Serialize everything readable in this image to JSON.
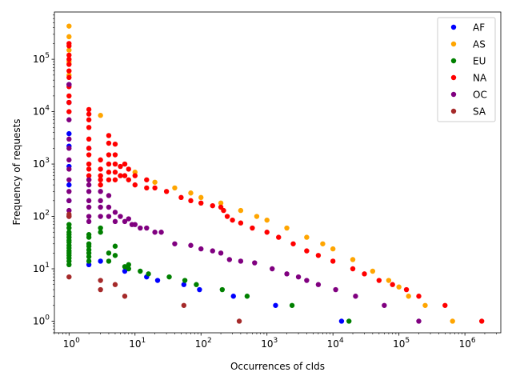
{
  "chart_data": {
    "type": "scatter",
    "xlabel": "Occurrences of cIds",
    "ylabel": "Frequency of requests",
    "xscale": "log",
    "yscale": "log",
    "xlim": [
      0.6,
      3500000
    ],
    "ylim": [
      0.6,
      800000
    ],
    "grid": false,
    "legend_position": "top-right",
    "x_ticks": [
      {
        "value": 1,
        "base": "10",
        "exp": "0"
      },
      {
        "value": 10,
        "base": "10",
        "exp": "1"
      },
      {
        "value": 100,
        "base": "10",
        "exp": "2"
      },
      {
        "value": 1000,
        "base": "10",
        "exp": "3"
      },
      {
        "value": 10000,
        "base": "10",
        "exp": "4"
      },
      {
        "value": 100000,
        "base": "10",
        "exp": "5"
      },
      {
        "value": 1000000,
        "base": "10",
        "exp": "6"
      }
    ],
    "y_ticks": [
      {
        "value": 1,
        "base": "10",
        "exp": "0"
      },
      {
        "value": 10,
        "base": "10",
        "exp": "1"
      },
      {
        "value": 100,
        "base": "10",
        "exp": "2"
      },
      {
        "value": 1000,
        "base": "10",
        "exp": "3"
      },
      {
        "value": 10000,
        "base": "10",
        "exp": "4"
      },
      {
        "value": 100000,
        "base": "10",
        "exp": "5"
      }
    ],
    "series": [
      {
        "name": "AF",
        "color": "#0000ff",
        "points": [
          [
            1,
            3800
          ],
          [
            1,
            33000
          ],
          [
            1,
            15000
          ],
          [
            1,
            2200
          ],
          [
            1,
            900
          ],
          [
            1,
            400
          ],
          [
            1,
            200
          ],
          [
            2,
            12
          ],
          [
            2,
            2000
          ],
          [
            3,
            14
          ],
          [
            7,
            9
          ],
          [
            15,
            7
          ],
          [
            22,
            6
          ],
          [
            55,
            5
          ],
          [
            95,
            4
          ],
          [
            310,
            3
          ],
          [
            1350,
            2
          ],
          [
            13500,
            1
          ]
        ]
      },
      {
        "name": "AS",
        "color": "#ffa500",
        "points": [
          [
            1,
            430000
          ],
          [
            1,
            270000
          ],
          [
            1,
            150000
          ],
          [
            1,
            90000
          ],
          [
            1,
            50000
          ],
          [
            3,
            8500
          ],
          [
            10,
            700
          ],
          [
            20,
            450
          ],
          [
            40,
            350
          ],
          [
            70,
            280
          ],
          [
            100,
            230
          ],
          [
            200,
            180
          ],
          [
            400,
            130
          ],
          [
            700,
            100
          ],
          [
            1000,
            85
          ],
          [
            2000,
            60
          ],
          [
            4000,
            40
          ],
          [
            7000,
            30
          ],
          [
            10000,
            24
          ],
          [
            20000,
            15
          ],
          [
            40000,
            9
          ],
          [
            70000,
            6
          ],
          [
            100000,
            4.5
          ],
          [
            140000,
            3
          ],
          [
            250000,
            2
          ],
          [
            650000,
            1
          ]
        ]
      },
      {
        "name": "EU",
        "color": "#008000",
        "points": [
          [
            1,
            12
          ],
          [
            1,
            14
          ],
          [
            1,
            16
          ],
          [
            1,
            18
          ],
          [
            1,
            20
          ],
          [
            1,
            22
          ],
          [
            1,
            25
          ],
          [
            1,
            28
          ],
          [
            1,
            32
          ],
          [
            1,
            35
          ],
          [
            1,
            40
          ],
          [
            1,
            45
          ],
          [
            1,
            50
          ],
          [
            1,
            60
          ],
          [
            1,
            70
          ],
          [
            2,
            14
          ],
          [
            2,
            17
          ],
          [
            2,
            20
          ],
          [
            2,
            23
          ],
          [
            2,
            27
          ],
          [
            2,
            30
          ],
          [
            2,
            40
          ],
          [
            2,
            45
          ],
          [
            3,
            50
          ],
          [
            3,
            60
          ],
          [
            4,
            20
          ],
          [
            4,
            14
          ],
          [
            5,
            18
          ],
          [
            5,
            27
          ],
          [
            7,
            11
          ],
          [
            8,
            12
          ],
          [
            8,
            10
          ],
          [
            12,
            9
          ],
          [
            16,
            8
          ],
          [
            33,
            7
          ],
          [
            57,
            6
          ],
          [
            85,
            5
          ],
          [
            210,
            4
          ],
          [
            500,
            3
          ],
          [
            2400,
            2
          ],
          [
            17500,
            1
          ]
        ]
      },
      {
        "name": "NA",
        "color": "#ff0000",
        "points": [
          [
            1,
            200000
          ],
          [
            1,
            180000
          ],
          [
            1,
            120000
          ],
          [
            1,
            100000
          ],
          [
            1,
            80000
          ],
          [
            1,
            60000
          ],
          [
            1,
            45000
          ],
          [
            1,
            30000
          ],
          [
            1,
            20000
          ],
          [
            1,
            15000
          ],
          [
            1,
            10000
          ],
          [
            2,
            11000
          ],
          [
            2,
            9000
          ],
          [
            2,
            7000
          ],
          [
            2,
            5000
          ],
          [
            2,
            3000
          ],
          [
            2,
            2000
          ],
          [
            2,
            1500
          ],
          [
            2,
            1000
          ],
          [
            2,
            800
          ],
          [
            2,
            600
          ],
          [
            2,
            500
          ],
          [
            3,
            1200
          ],
          [
            3,
            800
          ],
          [
            3,
            600
          ],
          [
            3,
            500
          ],
          [
            3,
            400
          ],
          [
            4,
            3500
          ],
          [
            4,
            2500
          ],
          [
            4,
            1500
          ],
          [
            4,
            1000
          ],
          [
            4,
            700
          ],
          [
            4,
            500
          ],
          [
            5,
            2400
          ],
          [
            5,
            1500
          ],
          [
            5,
            1000
          ],
          [
            5,
            700
          ],
          [
            5,
            500
          ],
          [
            6,
            900
          ],
          [
            6,
            600
          ],
          [
            7,
            1000
          ],
          [
            7,
            600
          ],
          [
            8,
            800
          ],
          [
            8,
            500
          ],
          [
            10,
            600
          ],
          [
            10,
            400
          ],
          [
            15,
            500
          ],
          [
            15,
            350
          ],
          [
            20,
            350
          ],
          [
            30,
            300
          ],
          [
            50,
            230
          ],
          [
            70,
            200
          ],
          [
            100,
            180
          ],
          [
            150,
            160
          ],
          [
            200,
            150
          ],
          [
            220,
            130
          ],
          [
            250,
            100
          ],
          [
            300,
            85
          ],
          [
            400,
            75
          ],
          [
            600,
            60
          ],
          [
            1000,
            50
          ],
          [
            1500,
            40
          ],
          [
            2500,
            30
          ],
          [
            4000,
            22
          ],
          [
            6000,
            18
          ],
          [
            10000,
            14
          ],
          [
            20000,
            10
          ],
          [
            30000,
            8
          ],
          [
            50000,
            6
          ],
          [
            80000,
            5
          ],
          [
            130000,
            4
          ],
          [
            200000,
            3
          ],
          [
            500000,
            2
          ],
          [
            1800000,
            1
          ]
        ]
      },
      {
        "name": "OC",
        "color": "#800080",
        "points": [
          [
            1,
            33000
          ],
          [
            1,
            7000
          ],
          [
            1,
            3000
          ],
          [
            1,
            2000
          ],
          [
            1,
            1200
          ],
          [
            1,
            800
          ],
          [
            1,
            500
          ],
          [
            1,
            300
          ],
          [
            1,
            200
          ],
          [
            1,
            130
          ],
          [
            1,
            100
          ],
          [
            2,
            500
          ],
          [
            2,
            400
          ],
          [
            2,
            300
          ],
          [
            2,
            200
          ],
          [
            2,
            150
          ],
          [
            2,
            100
          ],
          [
            2,
            80
          ],
          [
            3,
            300
          ],
          [
            3,
            200
          ],
          [
            3,
            150
          ],
          [
            3,
            100
          ],
          [
            4,
            250
          ],
          [
            4,
            150
          ],
          [
            4,
            100
          ],
          [
            5,
            120
          ],
          [
            5,
            80
          ],
          [
            6,
            100
          ],
          [
            7,
            80
          ],
          [
            8,
            90
          ],
          [
            9,
            70
          ],
          [
            10,
            70
          ],
          [
            12,
            60
          ],
          [
            15,
            60
          ],
          [
            20,
            50
          ],
          [
            25,
            50
          ],
          [
            40,
            30
          ],
          [
            70,
            28
          ],
          [
            100,
            24
          ],
          [
            150,
            22
          ],
          [
            200,
            20
          ],
          [
            270,
            15
          ],
          [
            400,
            14
          ],
          [
            650,
            13
          ],
          [
            1200,
            10
          ],
          [
            2000,
            8
          ],
          [
            3000,
            7
          ],
          [
            4000,
            6
          ],
          [
            6000,
            5
          ],
          [
            11000,
            4
          ],
          [
            22000,
            3
          ],
          [
            60000,
            2
          ],
          [
            200000,
            1
          ]
        ]
      },
      {
        "name": "SA",
        "color": "#a52a2a",
        "points": [
          [
            1,
            7
          ],
          [
            1,
            100
          ],
          [
            1,
            110
          ],
          [
            3,
            6
          ],
          [
            3,
            4
          ],
          [
            5,
            5
          ],
          [
            7,
            3
          ],
          [
            55,
            2
          ],
          [
            380,
            1
          ]
        ]
      }
    ]
  }
}
